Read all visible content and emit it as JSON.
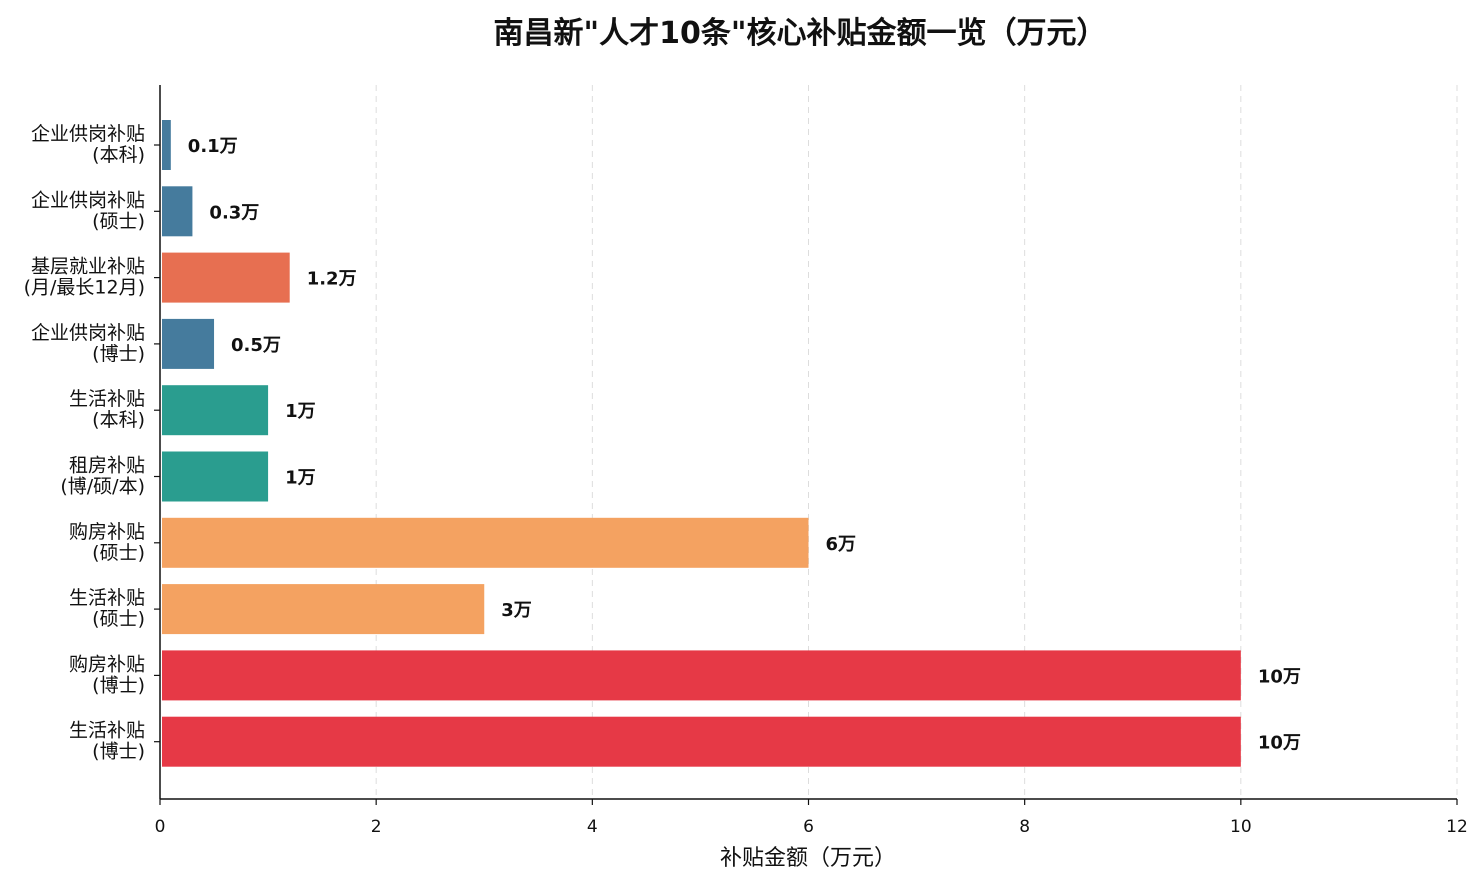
{
  "chart_data": {
    "type": "bar",
    "orientation": "horizontal",
    "title": "南昌新\"人才10条\"核心补贴金额一览（万元）",
    "xlabel": "补贴金额（万元）",
    "ylabel": "",
    "xlim": [
      0,
      12
    ],
    "xticks": [
      0,
      2,
      4,
      6,
      8,
      10,
      12
    ],
    "xtick_labels": [
      "0",
      "2",
      "4",
      "6",
      "8",
      "10",
      "12"
    ],
    "grid": "x dashed",
    "categories": [
      [
        "企业供岗补贴",
        "(本科)"
      ],
      [
        "企业供岗补贴",
        "(硕士)"
      ],
      [
        "基层就业补贴",
        "(月/最长12月)"
      ],
      [
        "企业供岗补贴",
        "(博士)"
      ],
      [
        "生活补贴",
        "(本科)"
      ],
      [
        "租房补贴",
        "(博/硕/本)"
      ],
      [
        "购房补贴",
        "(硕士)"
      ],
      [
        "生活补贴",
        "(硕士)"
      ],
      [
        "购房补贴",
        "(博士)"
      ],
      [
        "生活补贴",
        "(博士)"
      ]
    ],
    "values": [
      0.1,
      0.3,
      1.2,
      0.5,
      1,
      1,
      6,
      3,
      10,
      10
    ],
    "value_labels": [
      "0.1万",
      "0.3万",
      "1.2万",
      "0.5万",
      "1万",
      "1万",
      "6万",
      "3万",
      "10万",
      "10万"
    ],
    "colors": [
      "#457b9d",
      "#457b9d",
      "#e76f51",
      "#457b9d",
      "#2a9d8f",
      "#2a9d8f",
      "#f4a261",
      "#f4a261",
      "#e63946",
      "#e63946"
    ]
  }
}
